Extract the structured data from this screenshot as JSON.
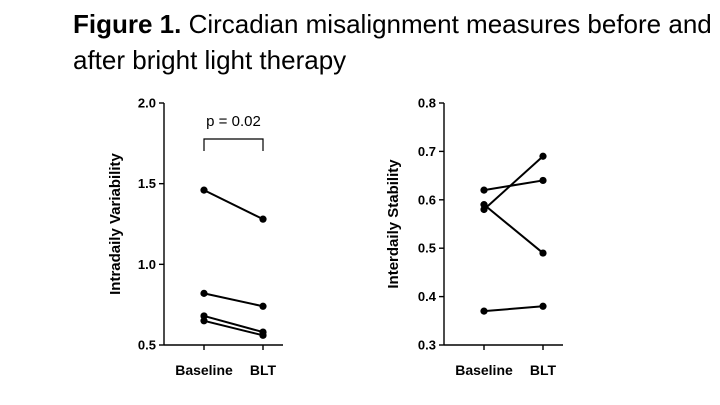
{
  "figure": {
    "label": "Figure 1.",
    "caption": "Circadian misalignment measures before and after bright light therapy"
  },
  "colors": {
    "ink": "#000000",
    "background": "#ffffff"
  },
  "chart_data": [
    {
      "type": "line",
      "ylabel": "Intradaily Variability",
      "xlabel": "",
      "categories": [
        "Baseline",
        "BLT"
      ],
      "ylim": [
        0.5,
        2.0
      ],
      "yticks": [
        "0.5",
        "1.0",
        "1.5",
        "2.0"
      ],
      "grid": false,
      "series": [
        {
          "values": [
            1.46,
            1.28
          ]
        },
        {
          "values": [
            0.82,
            0.74
          ]
        },
        {
          "values": [
            0.68,
            0.58
          ]
        },
        {
          "values": [
            0.65,
            0.56
          ]
        }
      ],
      "annotation": {
        "text": "p = 0.02",
        "type": "bracket",
        "between": [
          "Baseline",
          "BLT"
        ]
      }
    },
    {
      "type": "line",
      "ylabel": "Interdaily Stability",
      "xlabel": "",
      "categories": [
        "Baseline",
        "BLT"
      ],
      "ylim": [
        0.3,
        0.8
      ],
      "yticks": [
        "0.3",
        "0.4",
        "0.5",
        "0.6",
        "0.7",
        "0.8"
      ],
      "grid": false,
      "series": [
        {
          "values": [
            0.62,
            0.64
          ]
        },
        {
          "values": [
            0.59,
            0.49
          ]
        },
        {
          "values": [
            0.58,
            0.69
          ]
        },
        {
          "values": [
            0.37,
            0.38
          ]
        }
      ]
    }
  ]
}
